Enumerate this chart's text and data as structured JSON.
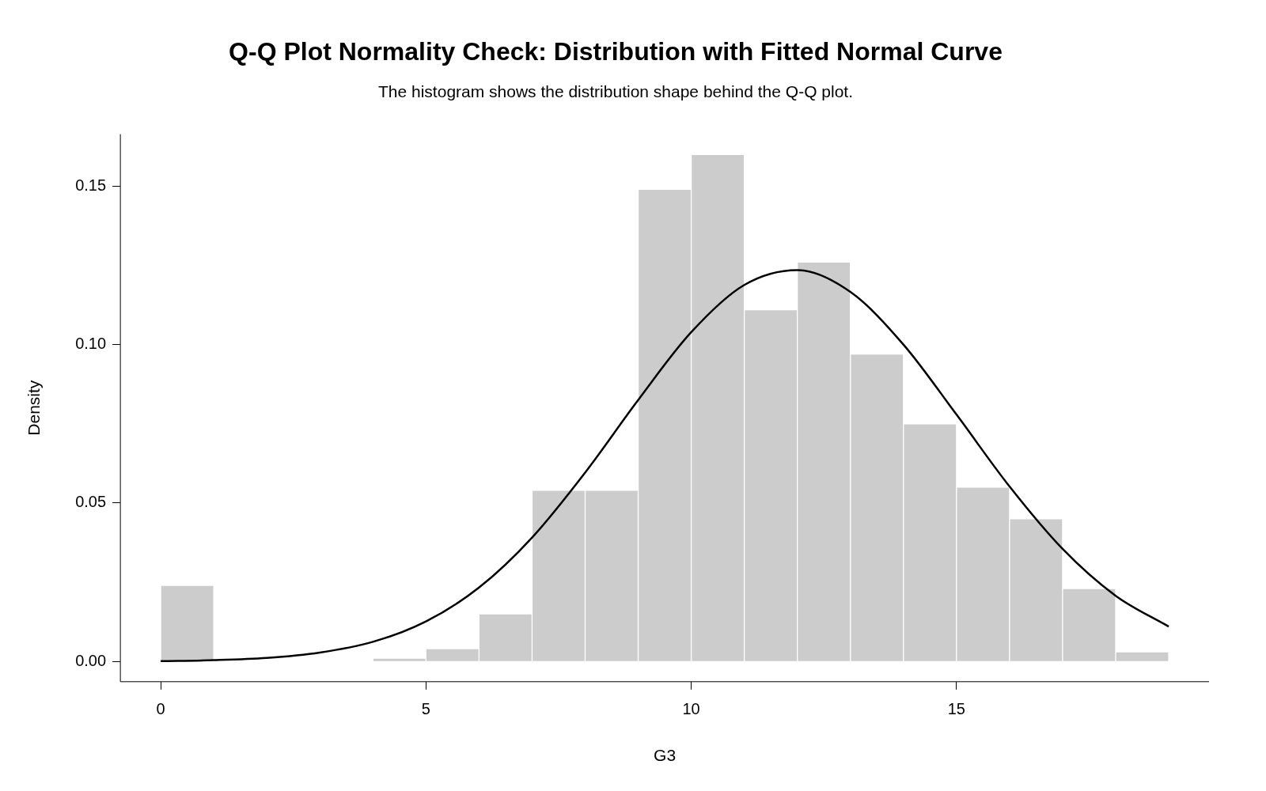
{
  "chart_data": {
    "type": "histogram",
    "title": "Q-Q Plot Normality Check: Distribution with Fitted Normal Curve",
    "subtitle": "The histogram shows the distribution shape behind the Q-Q plot.",
    "xlabel": "G3",
    "ylabel": "Density",
    "bins": [
      0,
      1,
      2,
      3,
      4,
      5,
      6,
      7,
      8,
      9,
      10,
      11,
      12,
      13,
      14,
      15,
      16,
      17,
      18,
      19
    ],
    "values": [
      0.024,
      0,
      0,
      0,
      0.001,
      0.004,
      0.015,
      0.054,
      0.054,
      0.149,
      0.16,
      0.111,
      0.126,
      0.097,
      0.075,
      0.055,
      0.045,
      0.023,
      0.003
    ],
    "color": "#cccccc",
    "series": [
      {
        "type": "line",
        "color": "#000000",
        "x": [
          0,
          1,
          2,
          3,
          4,
          5,
          6,
          7,
          8,
          9,
          10,
          11,
          12,
          13,
          14,
          15,
          16,
          17,
          18,
          19
        ],
        "values": [
          0.0001,
          0.0004,
          0.0011,
          0.0028,
          0.0062,
          0.0126,
          0.0233,
          0.0391,
          0.0596,
          0.0825,
          0.1039,
          0.1188,
          0.1235,
          0.1166,
          0.1,
          0.0779,
          0.0552,
          0.0355,
          0.0207,
          0.011
        ]
      }
    ],
    "xlim": [
      -0.76,
      19.76
    ],
    "ylim": [
      -0.0064,
      0.1664
    ],
    "xticks": [
      0,
      5,
      10,
      15
    ],
    "yticks": [
      {
        "value": 0,
        "label": "0.00"
      },
      {
        "value": 0.05,
        "label": "0.05"
      },
      {
        "value": 0.1,
        "label": "0.10"
      },
      {
        "value": 0.15,
        "label": "0.15"
      }
    ]
  }
}
